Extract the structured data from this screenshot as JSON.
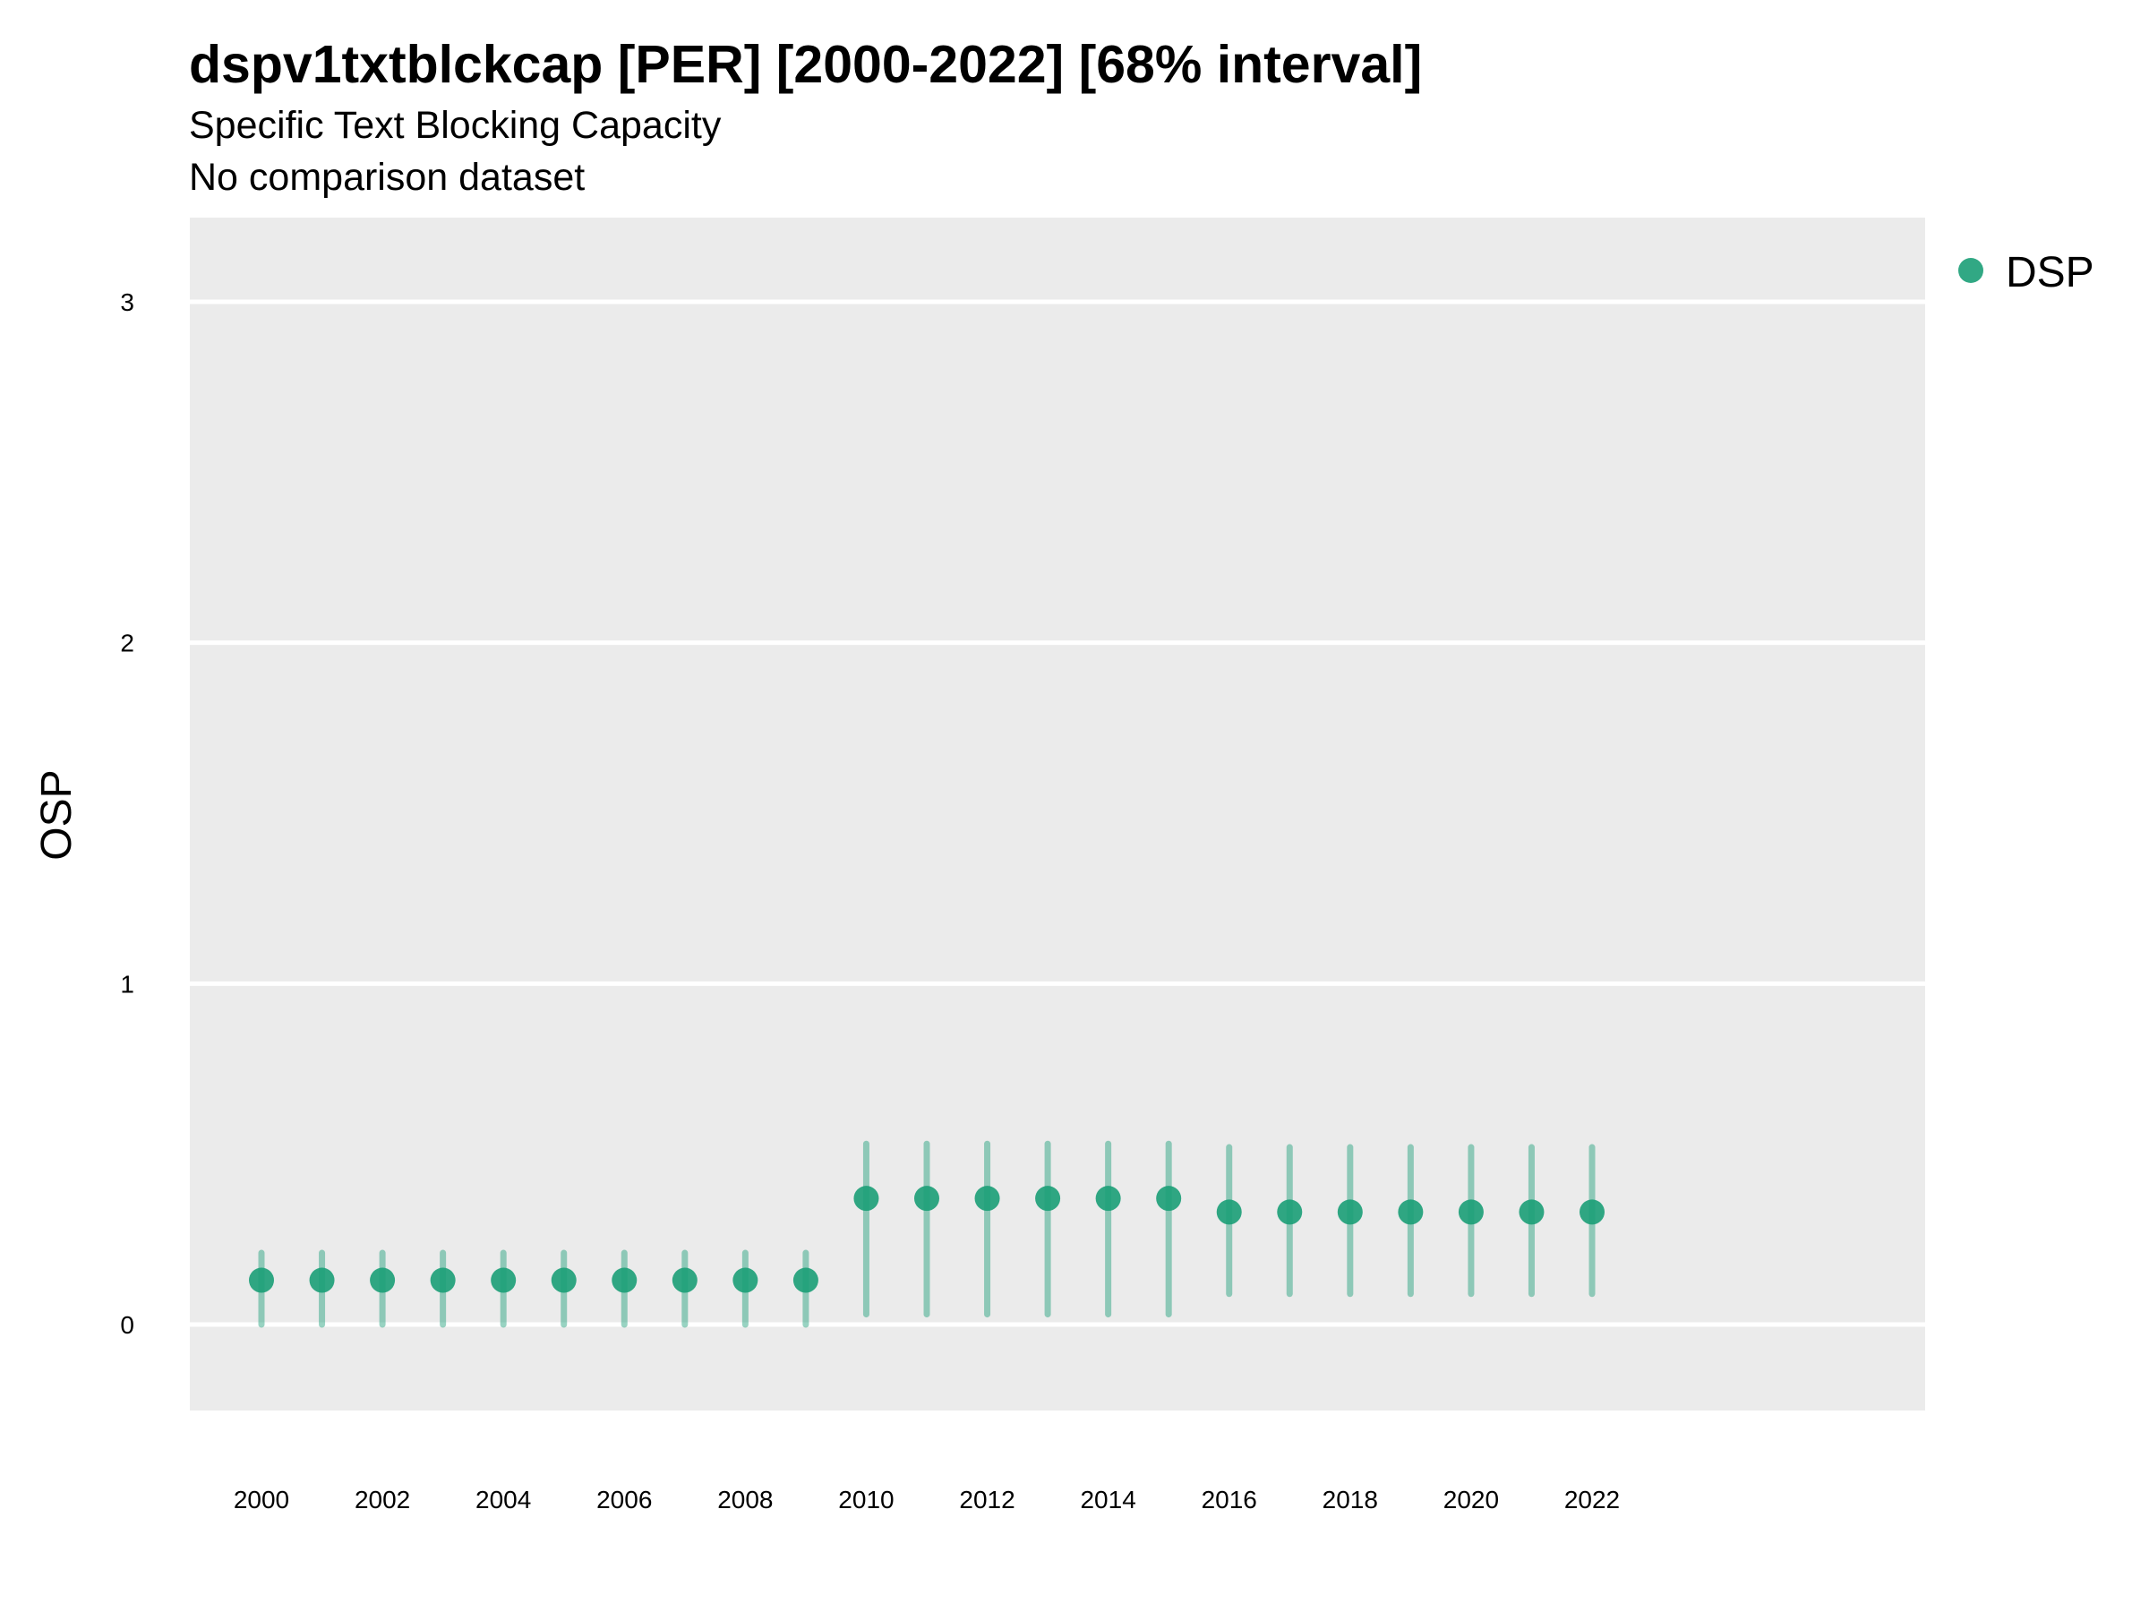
{
  "title": "dspv1txtblckcap [PER] [2000-2022] [68% interval]",
  "subtitle_line1": "Specific Text Blocking Capacity",
  "subtitle_line2": "No comparison dataset",
  "colors": {
    "panel": "#ebebeb",
    "grid": "#ffffff",
    "series": "#1b9e77"
  },
  "chart_data": {
    "type": "scatter",
    "title": "dspv1txtblckcap [PER] [2000-2022] [68% interval]",
    "subtitle": [
      "Specific Text Blocking Capacity",
      "No comparison dataset"
    ],
    "xlabel": "",
    "ylabel": "OSP",
    "xlim": [
      1999.0,
      2023.0
    ],
    "ylim": [
      -0.25,
      3.25
    ],
    "x_ticks": [
      "2000",
      "2002",
      "2004",
      "2006",
      "2008",
      "2010",
      "2012",
      "2014",
      "2016",
      "2018",
      "2020",
      "2022"
    ],
    "y_ticks": [
      "0",
      "1",
      "2",
      "3"
    ],
    "grid": true,
    "legend": {
      "position": "right",
      "entries": [
        "DSP"
      ]
    },
    "series": [
      {
        "name": "DSP",
        "x": [
          2000,
          2001,
          2002,
          2003,
          2004,
          2005,
          2006,
          2007,
          2008,
          2009,
          2010,
          2011,
          2012,
          2013,
          2014,
          2015,
          2016,
          2017,
          2018,
          2019,
          2020,
          2021,
          2022
        ],
        "y": [
          0.13,
          0.13,
          0.13,
          0.13,
          0.13,
          0.13,
          0.13,
          0.13,
          0.13,
          0.13,
          0.37,
          0.37,
          0.37,
          0.37,
          0.37,
          0.37,
          0.33,
          0.33,
          0.33,
          0.33,
          0.33,
          0.33,
          0.33
        ],
        "lower": [
          0.0,
          0.0,
          0.0,
          0.0,
          0.0,
          0.0,
          0.0,
          0.0,
          0.0,
          0.0,
          0.03,
          0.03,
          0.03,
          0.03,
          0.03,
          0.03,
          0.09,
          0.09,
          0.09,
          0.09,
          0.09,
          0.09,
          0.09
        ],
        "upper": [
          0.21,
          0.21,
          0.21,
          0.21,
          0.21,
          0.21,
          0.21,
          0.21,
          0.21,
          0.21,
          0.53,
          0.53,
          0.53,
          0.53,
          0.53,
          0.53,
          0.52,
          0.52,
          0.52,
          0.52,
          0.52,
          0.52,
          0.52
        ]
      }
    ]
  }
}
